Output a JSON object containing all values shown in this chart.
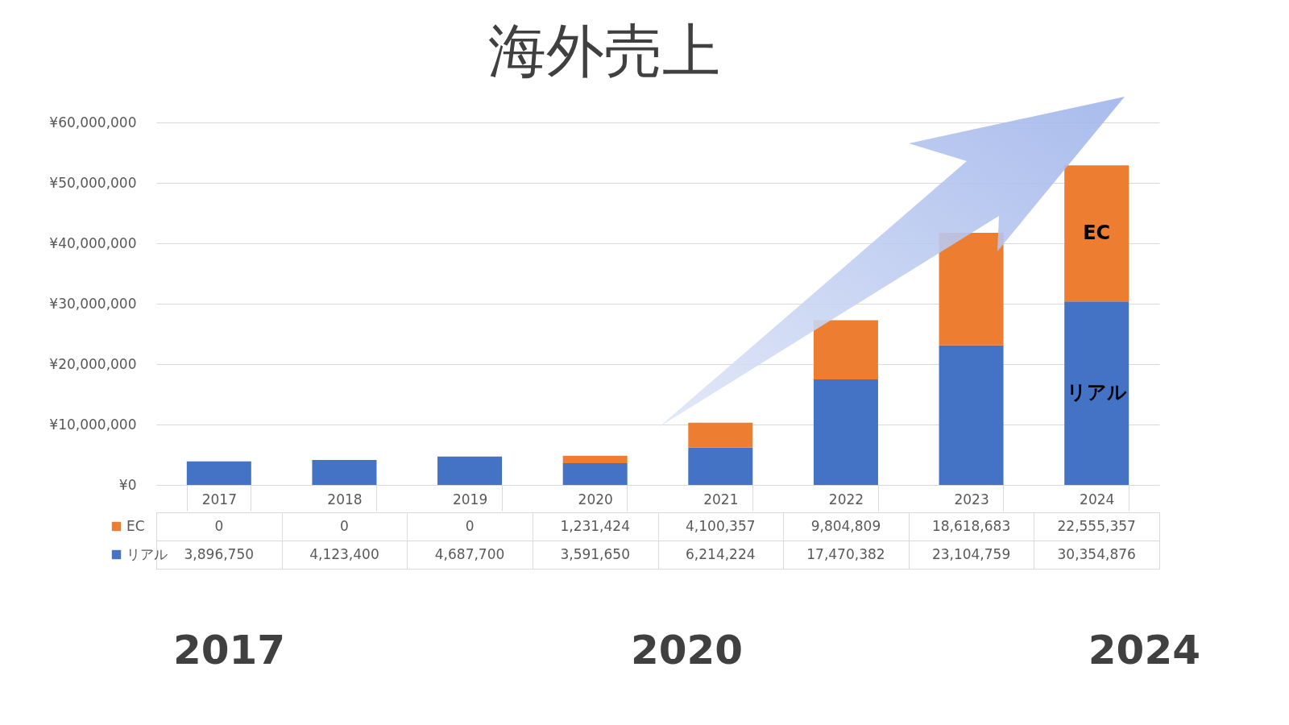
{
  "chart_data": {
    "type": "bar",
    "title": "海外売上",
    "stacked": true,
    "legend": "bottom left",
    "grid": "y",
    "categories": [
      "2017",
      "2018",
      "2019",
      "2020",
      "2021",
      "2022",
      "2023",
      "2024"
    ],
    "series": [
      {
        "name": "リアル",
        "color": "#4472c4",
        "values": [
          3896750,
          4123400,
          4687700,
          3591650,
          6214224,
          17470382,
          23104759,
          30354876
        ],
        "value_labels": [
          "3,896,750",
          "4,123,400",
          "4,687,700",
          "3,591,650",
          "6,214,224",
          "17,470,382",
          "23,104,759",
          "30,354,876"
        ]
      },
      {
        "name": "EC",
        "color": "#ed7d31",
        "values": [
          0,
          0,
          0,
          1231424,
          4100357,
          9804809,
          18618683,
          22555357
        ],
        "value_labels": [
          "0",
          "0",
          "0",
          "1,231,424",
          "4,100,357",
          "9,804,809",
          "18,618,683",
          "22,555,357"
        ]
      }
    ],
    "ylim": [
      0,
      60000000
    ],
    "yticks": [
      {
        "value": 0,
        "label": "¥0"
      },
      {
        "value": 10000000,
        "label": "¥10,000,000"
      },
      {
        "value": 20000000,
        "label": "¥20,000,000"
      },
      {
        "value": 30000000,
        "label": "¥30,000,000"
      },
      {
        "value": 40000000,
        "label": "¥40,000,000"
      },
      {
        "value": 50000000,
        "label": "¥50,000,000"
      },
      {
        "value": 60000000,
        "label": "¥60,000,000"
      }
    ],
    "annotations": [
      "2017",
      "2020",
      "2024"
    ]
  }
}
